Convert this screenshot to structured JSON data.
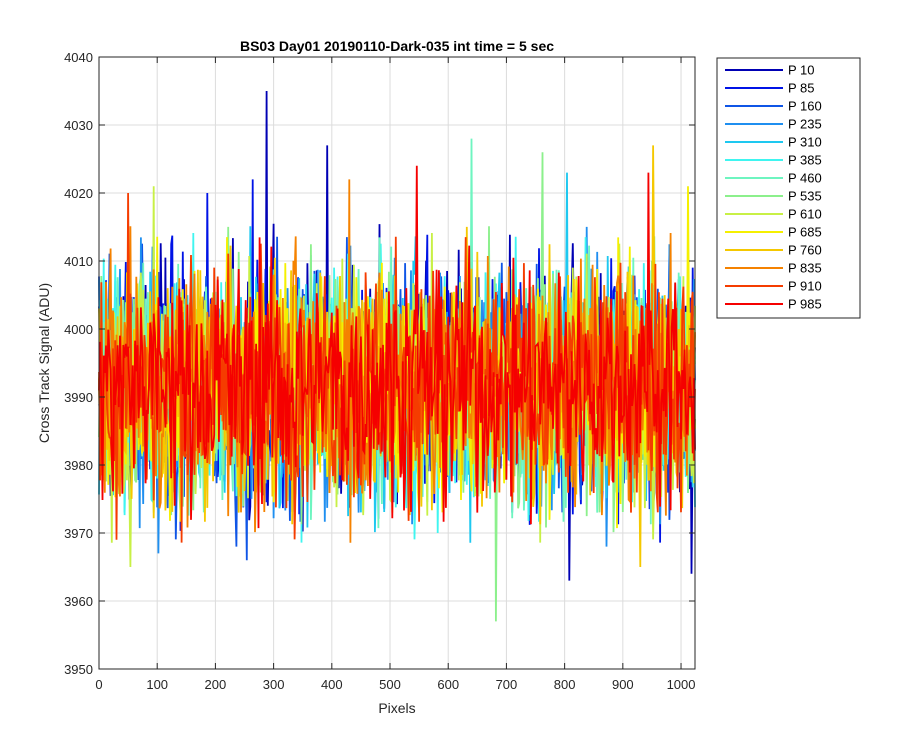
{
  "chart_data": {
    "type": "line",
    "title": "BS03 Day01 20190110-Dark-035 int time = 5 sec",
    "xlabel": "Pixels",
    "ylabel": "Cross Track Signal (ADU)",
    "xlim": [
      0,
      1024
    ],
    "ylim": [
      3950,
      4040
    ],
    "x_ticks": [
      0,
      100,
      200,
      300,
      400,
      500,
      600,
      700,
      800,
      900,
      1000
    ],
    "y_ticks": [
      3950,
      3960,
      3970,
      3980,
      3990,
      4000,
      4010,
      4020,
      4030,
      4040
    ],
    "grid": true,
    "legend_position": "outside-top-right",
    "series_mean": 3992,
    "series": [
      {
        "name": "P 10",
        "color": "#0000b4",
        "peaks": [
          {
            "x": 288,
            "y": 4035
          },
          {
            "x": 393,
            "y": 4027
          },
          {
            "x": 808,
            "y": 3963
          },
          {
            "x": 1018,
            "y": 3964
          }
        ]
      },
      {
        "name": "P 85",
        "color": "#0013e6",
        "peaks": [
          {
            "x": 265,
            "y": 4022
          },
          {
            "x": 187,
            "y": 4020
          }
        ]
      },
      {
        "name": "P 160",
        "color": "#0f55e6",
        "peaks": [
          {
            "x": 236,
            "y": 3968
          },
          {
            "x": 255,
            "y": 3966
          }
        ]
      },
      {
        "name": "P 235",
        "color": "#1f8ff0",
        "peaks": [
          {
            "x": 102,
            "y": 3967
          },
          {
            "x": 873,
            "y": 3968
          }
        ]
      },
      {
        "name": "P 310",
        "color": "#1ec8f0",
        "peaks": [
          {
            "x": 805,
            "y": 4023
          }
        ]
      },
      {
        "name": "P 385",
        "color": "#3ff5f0",
        "peaks": [
          {
            "x": 583,
            "y": 3970
          }
        ]
      },
      {
        "name": "P 460",
        "color": "#6ef5c0",
        "peaks": [
          {
            "x": 641,
            "y": 4028
          }
        ]
      },
      {
        "name": "P 535",
        "color": "#8cf08c",
        "peaks": [
          {
            "x": 682,
            "y": 3957
          },
          {
            "x": 763,
            "y": 4026
          }
        ]
      },
      {
        "name": "P 610",
        "color": "#c8f046",
        "peaks": [
          {
            "x": 95,
            "y": 4021
          },
          {
            "x": 55,
            "y": 3965
          }
        ]
      },
      {
        "name": "P 685",
        "color": "#f5f000",
        "peaks": [
          {
            "x": 1013,
            "y": 4021
          }
        ]
      },
      {
        "name": "P 760",
        "color": "#f5c800",
        "peaks": [
          {
            "x": 953,
            "y": 4027
          },
          {
            "x": 930,
            "y": 3965
          }
        ]
      },
      {
        "name": "P 835",
        "color": "#f58200",
        "peaks": [
          {
            "x": 430,
            "y": 4022
          }
        ]
      },
      {
        "name": "P 910",
        "color": "#f53c00",
        "peaks": [
          {
            "x": 51,
            "y": 4020
          },
          {
            "x": 30,
            "y": 3969
          }
        ]
      },
      {
        "name": "P 985",
        "color": "#f50000",
        "peaks": [
          {
            "x": 547,
            "y": 4024
          },
          {
            "x": 945,
            "y": 4023
          }
        ]
      }
    ]
  }
}
